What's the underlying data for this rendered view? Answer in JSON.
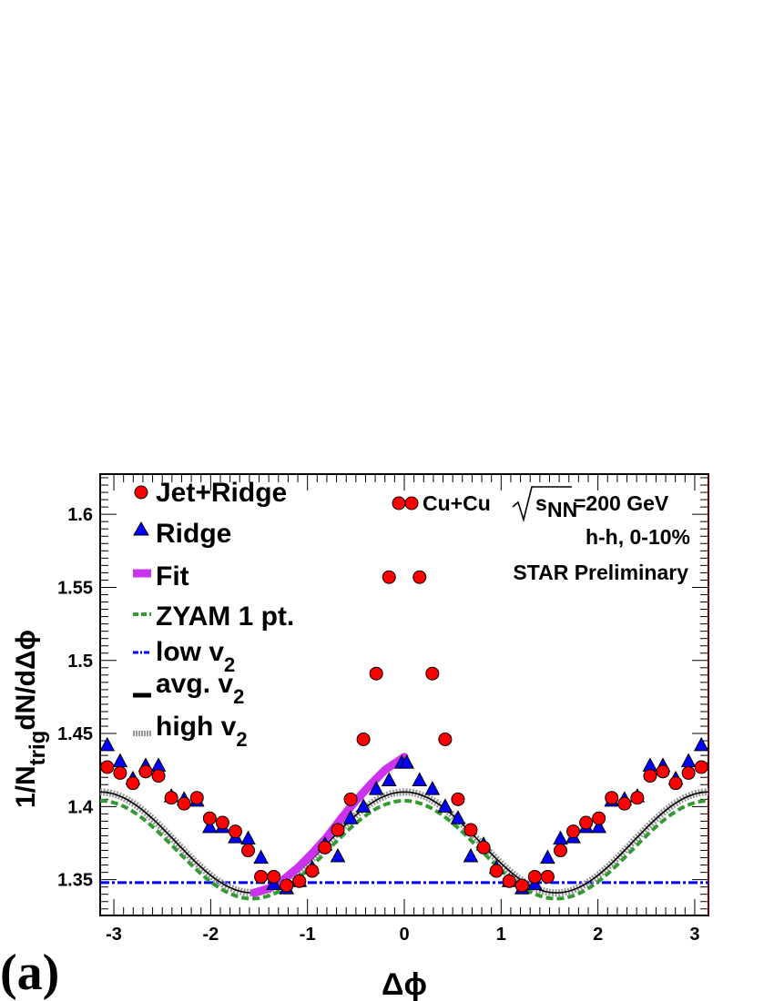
{
  "panel_label": "(a)",
  "chart_data": {
    "type": "scatter",
    "xlabel": "Δϕ",
    "ylabel": {
      "main": "1/N",
      "sub": "trig",
      "rest": "dN/dΔϕ"
    },
    "xlim": [
      -3.14159,
      3.14159
    ],
    "ylim": [
      1.3255,
      1.6275
    ],
    "x_ticks": [
      "-3",
      "-2",
      "-1",
      "0",
      "1",
      "2",
      "3"
    ],
    "y_ticks": [
      "1.35",
      "1.4",
      "1.45",
      "1.5",
      "1.55",
      "1.6"
    ],
    "grid": false,
    "legend_position": "top-left",
    "annotations": {
      "system_prefix": "Cu+Cu",
      "energy_symbol": "s",
      "energy_sub": "NN",
      "energy_value": "=200 GeV",
      "line2": "h-h, 0-10%",
      "line3": "STAR Preliminary"
    },
    "series": [
      {
        "name": "Jet+Ridge",
        "marker": "circle",
        "color": "#ff0000",
        "x": [
          -3.0682,
          -2.9359,
          -2.8036,
          -2.6713,
          -2.539,
          -2.4067,
          -2.2744,
          -2.1421,
          -2.0098,
          -1.8775,
          -1.7452,
          -1.6129,
          -1.4806,
          -1.3483,
          -1.216,
          -1.0837,
          -0.9514,
          -0.8191,
          -0.6868,
          -0.5545,
          -0.4222,
          -0.2899,
          -0.1576,
          0.1576,
          0.2899,
          0.4222,
          0.5545,
          0.6868,
          0.8191,
          0.9514,
          1.0837,
          1.216,
          1.3483,
          1.4806,
          1.6129,
          1.7452,
          1.8775,
          2.0098,
          2.1421,
          2.2744,
          2.4067,
          2.539,
          2.6713,
          2.8036,
          2.9359,
          3.0682
        ],
        "values": [
          1.427,
          1.423,
          1.416,
          1.424,
          1.421,
          1.406,
          1.402,
          1.406,
          1.392,
          1.389,
          1.383,
          1.37,
          1.352,
          1.352,
          1.346,
          1.349,
          1.356,
          1.372,
          1.384,
          1.405,
          1.446,
          1.491,
          1.557,
          1.557,
          1.491,
          1.446,
          1.405,
          1.384,
          1.372,
          1.356,
          1.349,
          1.346,
          1.352,
          1.352,
          1.37,
          1.383,
          1.389,
          1.392,
          1.406,
          1.402,
          1.406,
          1.421,
          1.424,
          1.416,
          1.423,
          1.427
        ]
      },
      {
        "name": "Ridge",
        "marker": "triangle",
        "color": "#0000ff",
        "x": [
          -3.0682,
          -2.9359,
          -2.8036,
          -2.6713,
          -2.539,
          -2.4067,
          -2.2744,
          -2.1421,
          -2.0098,
          -1.8775,
          -1.7452,
          -1.6129,
          -1.4806,
          -1.3483,
          -1.216,
          -1.0837,
          -0.9514,
          -0.8191,
          -0.6868,
          -0.5545,
          -0.4222,
          -0.2899,
          -0.1576,
          -0.0253,
          0.0253,
          0.1576,
          0.2899,
          0.4222,
          0.5545,
          0.6868,
          0.8191,
          0.9514,
          1.0837,
          1.216,
          1.3483,
          1.4806,
          1.6129,
          1.7452,
          1.8775,
          2.0098,
          2.1421,
          2.2744,
          2.4067,
          2.539,
          2.6713,
          2.8036,
          2.9359,
          3.0682
        ],
        "values": [
          1.442,
          1.431,
          1.419,
          1.428,
          1.428,
          1.407,
          1.405,
          1.404,
          1.386,
          1.386,
          1.379,
          1.378,
          1.365,
          1.347,
          1.344,
          1.349,
          1.358,
          1.374,
          1.366,
          1.392,
          1.4,
          1.412,
          1.418,
          1.43,
          1.43,
          1.418,
          1.412,
          1.4,
          1.392,
          1.366,
          1.374,
          1.358,
          1.349,
          1.344,
          1.347,
          1.365,
          1.378,
          1.379,
          1.386,
          1.386,
          1.404,
          1.405,
          1.407,
          1.428,
          1.428,
          1.419,
          1.431,
          1.442
        ]
      },
      {
        "name": "Fit",
        "style": "thick-line",
        "color": "#cc33ee",
        "x": [
          -1.55,
          -1.4,
          -1.25,
          -1.1,
          -0.95,
          -0.8,
          -0.65,
          -0.5,
          -0.35,
          -0.2,
          0.0
        ],
        "values": [
          1.341,
          1.344,
          1.35,
          1.358,
          1.368,
          1.379,
          1.392,
          1.404,
          1.415,
          1.425,
          1.434
        ]
      },
      {
        "name": "ZYAM 1 pt.",
        "style": "dashed",
        "color": "#339933",
        "function": "1.3705 + 0.0335*cos(2x)"
      },
      {
        "name": "low v2",
        "style": "dash-dot",
        "color": "#0000ff",
        "function": "1.348"
      },
      {
        "name": "avg. v2",
        "style": "solid",
        "color": "#000000",
        "function": "1.3755 + 0.0345*cos(2x)"
      },
      {
        "name": "high v2",
        "style": "dotted-band",
        "color": "#999999",
        "function": "1.3755 + 0.0345*cos(2x)"
      }
    ],
    "legend": [
      {
        "main": "Jet+Ridge",
        "sub": ""
      },
      {
        "main": "Ridge",
        "sub": ""
      },
      {
        "main": "Fit",
        "sub": ""
      },
      {
        "main": "ZYAM 1 pt.",
        "sub": ""
      },
      {
        "main": "low v",
        "sub": "2"
      },
      {
        "main": "avg. v",
        "sub": "2"
      },
      {
        "main": "high v",
        "sub": "2"
      }
    ]
  }
}
